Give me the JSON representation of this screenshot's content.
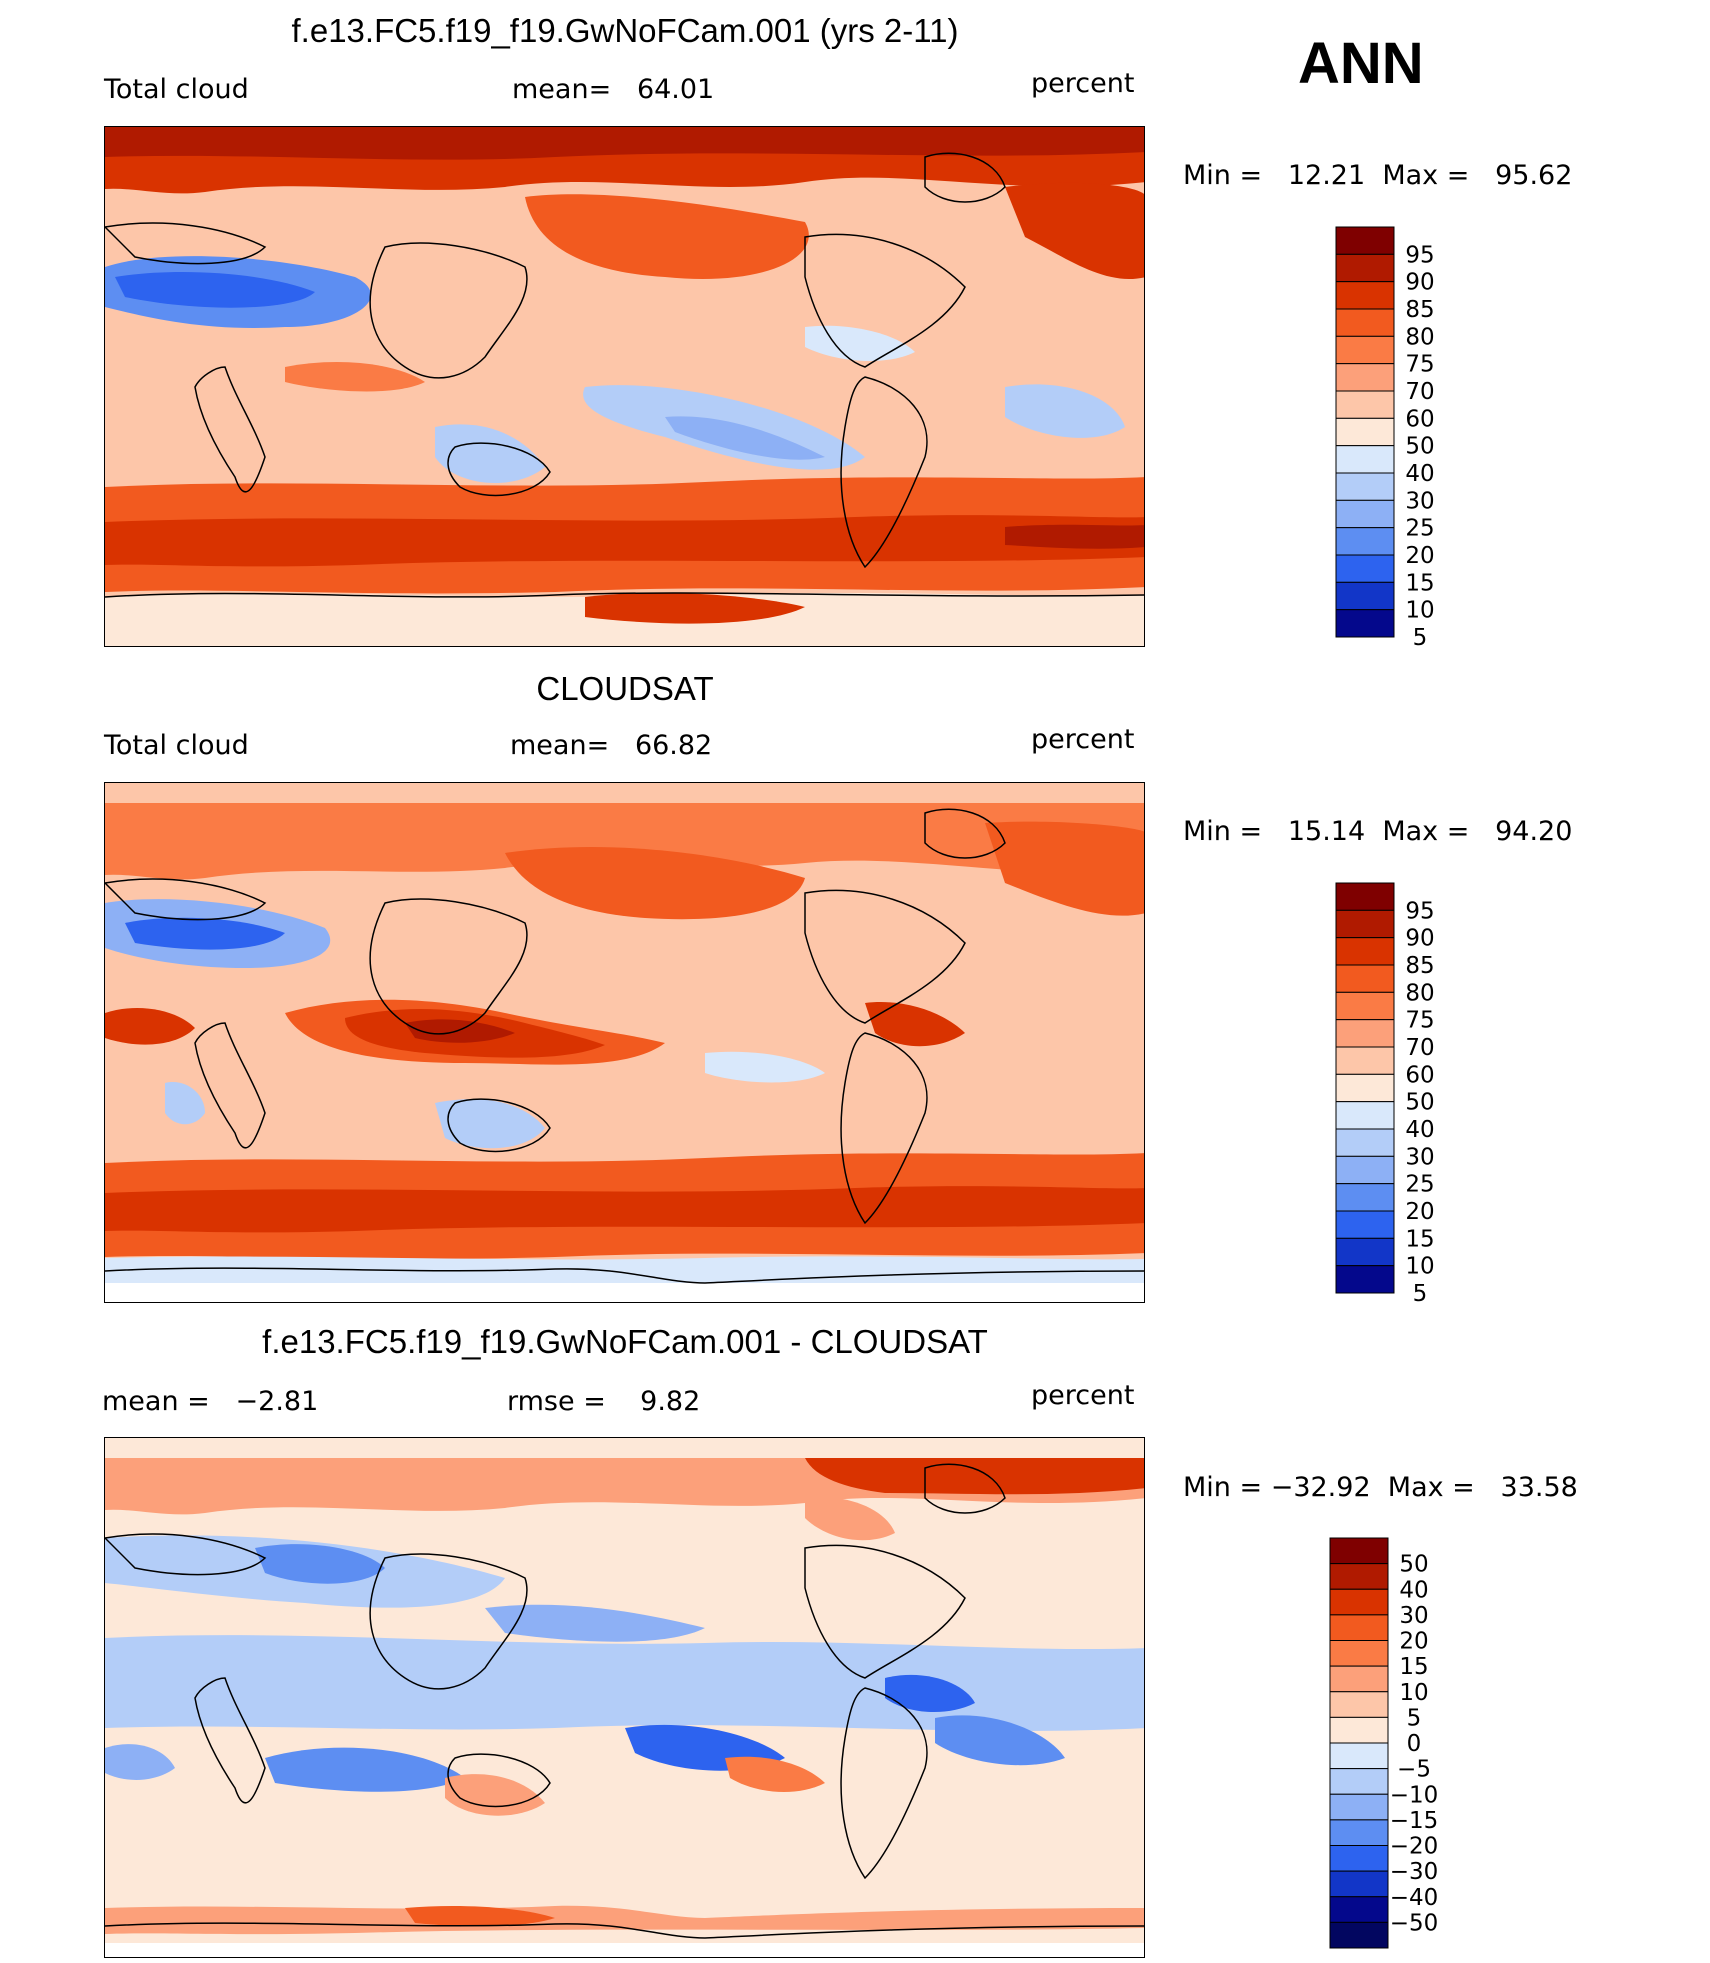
{
  "season": "ANN",
  "panels": [
    {
      "title": "f.e13.FC5.f19_f19.GwNoFCam.001 (yrs 2-11)",
      "left_label": "Total cloud",
      "center_label": "mean=   64.01",
      "units": "percent",
      "minmax": "Min =   12.21  Max =   95.62",
      "colorbar": [
        "95",
        "90",
        "85",
        "80",
        "75",
        "70",
        "60",
        "50",
        "40",
        "30",
        "25",
        "20",
        "15",
        "10",
        "5"
      ]
    },
    {
      "title": "CLOUDSAT",
      "left_label": "Total cloud",
      "center_label": "mean=   66.82",
      "units": "percent",
      "minmax": "Min =   15.14  Max =   94.20",
      "colorbar": [
        "95",
        "90",
        "85",
        "80",
        "75",
        "70",
        "60",
        "50",
        "40",
        "30",
        "25",
        "20",
        "15",
        "10",
        "5"
      ]
    },
    {
      "title": "f.e13.FC5.f19_f19.GwNoFCam.001 - CLOUDSAT",
      "left_label": "mean =   −2.81",
      "center_label": "rmse =    9.82",
      "units": "percent",
      "minmax": "Min = −32.92  Max =   33.58",
      "colorbar": [
        "50",
        "40",
        "30",
        "20",
        "15",
        "10",
        "5",
        "0",
        "−5",
        "−10",
        "−15",
        "−20",
        "−30",
        "−40",
        "−50"
      ]
    }
  ],
  "colors": {
    "absolute_scale": [
      "#7f0000",
      "#b01a00",
      "#d93300",
      "#f25a1f",
      "#fa7b45",
      "#fca07a",
      "#fdc6a9",
      "#fde8d8",
      "#d9e8fb",
      "#b3cdf8",
      "#8db0f5",
      "#5d8ef2",
      "#2d63ef",
      "#1236c8",
      "#04088c"
    ],
    "difference_scale": [
      "#7f0000",
      "#b01a00",
      "#d93300",
      "#f25a1f",
      "#fa7b45",
      "#fca07a",
      "#fdc6a9",
      "#fde8d8",
      "#d9e8fb",
      "#b3cdf8",
      "#8db0f5",
      "#5d8ef2",
      "#2d63ef",
      "#1236c8",
      "#04088c",
      "#020660"
    ],
    "land_outline": "#000000"
  }
}
